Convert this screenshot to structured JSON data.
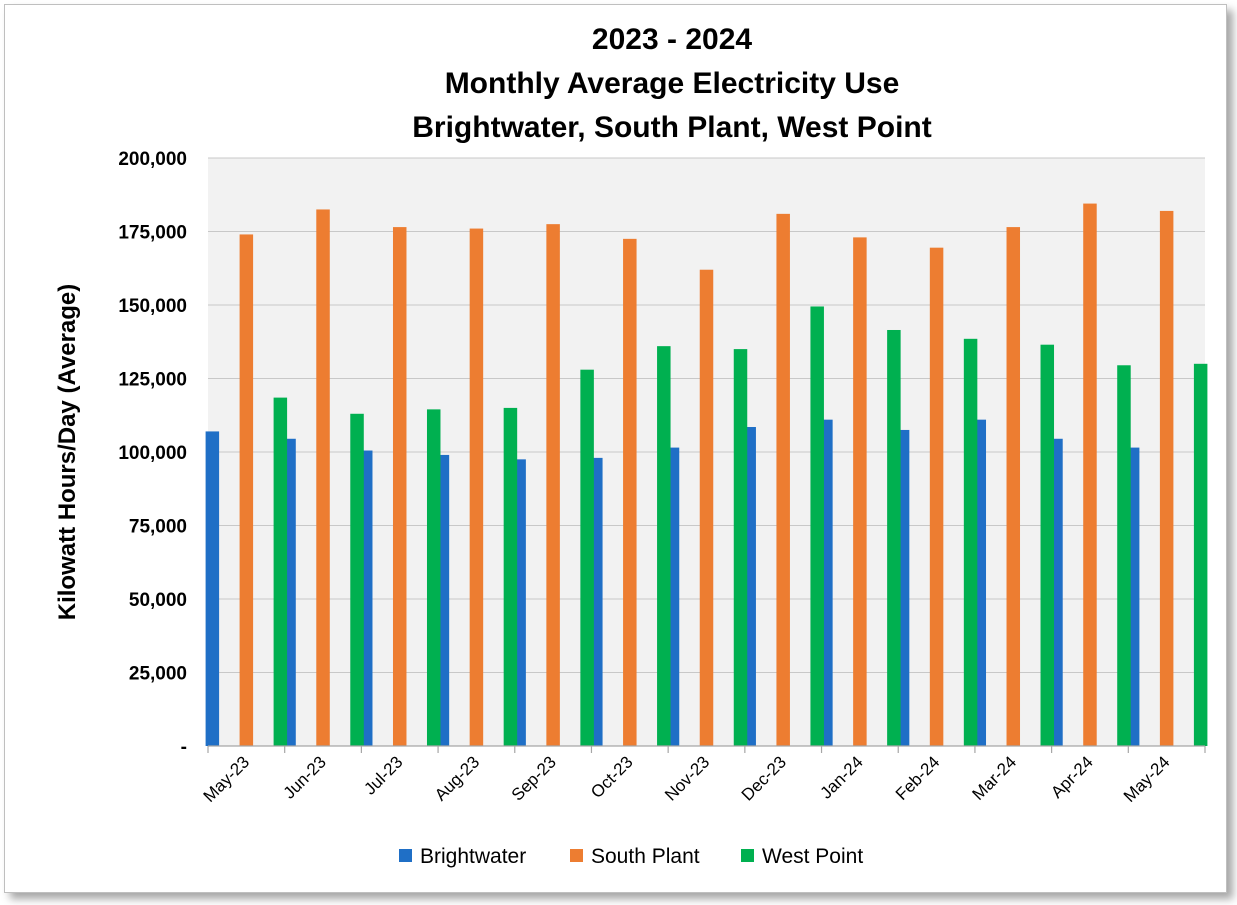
{
  "chart_data": {
    "type": "bar",
    "title_lines": [
      "2023 - 2024",
      "Monthly Average Electricity Use",
      "Brightwater, South Plant, West Point"
    ],
    "ylabel": "Kilowatt Hours/Day (Average)",
    "xlabel": "",
    "ylim": [
      0,
      200000
    ],
    "yticks": [
      {
        "value": 0,
        "label": "-"
      },
      {
        "value": 25000,
        "label": "25,000"
      },
      {
        "value": 50000,
        "label": "50,000"
      },
      {
        "value": 75000,
        "label": "75,000"
      },
      {
        "value": 100000,
        "label": "100,000"
      },
      {
        "value": 125000,
        "label": "125,000"
      },
      {
        "value": 150000,
        "label": "150,000"
      },
      {
        "value": 175000,
        "label": "175,000"
      },
      {
        "value": 200000,
        "label": "200,000"
      }
    ],
    "categories": [
      "May-23",
      "Jun-23",
      "Jul-23",
      "Aug-23",
      "Sep-23",
      "Oct-23",
      "Nov-23",
      "Dec-23",
      "Jan-24",
      "Feb-24",
      "Mar-24",
      "Apr-24",
      "May-24"
    ],
    "series": [
      {
        "name": "Brightwater",
        "color": "#1f6fc6",
        "values": [
          107000,
          104500,
          100500,
          99000,
          97500,
          98000,
          101500,
          108500,
          111000,
          107500,
          111000,
          104500,
          101500
        ]
      },
      {
        "name": "South Plant",
        "color": "#ed7d31",
        "values": [
          174000,
          182500,
          176500,
          176000,
          177500,
          172500,
          162000,
          181000,
          173000,
          169500,
          176500,
          184500,
          182000
        ]
      },
      {
        "name": "West Point",
        "color": "#00b050",
        "values": [
          118500,
          113000,
          114500,
          115000,
          128000,
          136000,
          135000,
          149500,
          141500,
          138500,
          136500,
          129500,
          130000
        ]
      }
    ],
    "grid": true,
    "plot_background": "#f2f2f2",
    "gridline_color": "#c8c8c8",
    "legend_position": "bottom"
  }
}
